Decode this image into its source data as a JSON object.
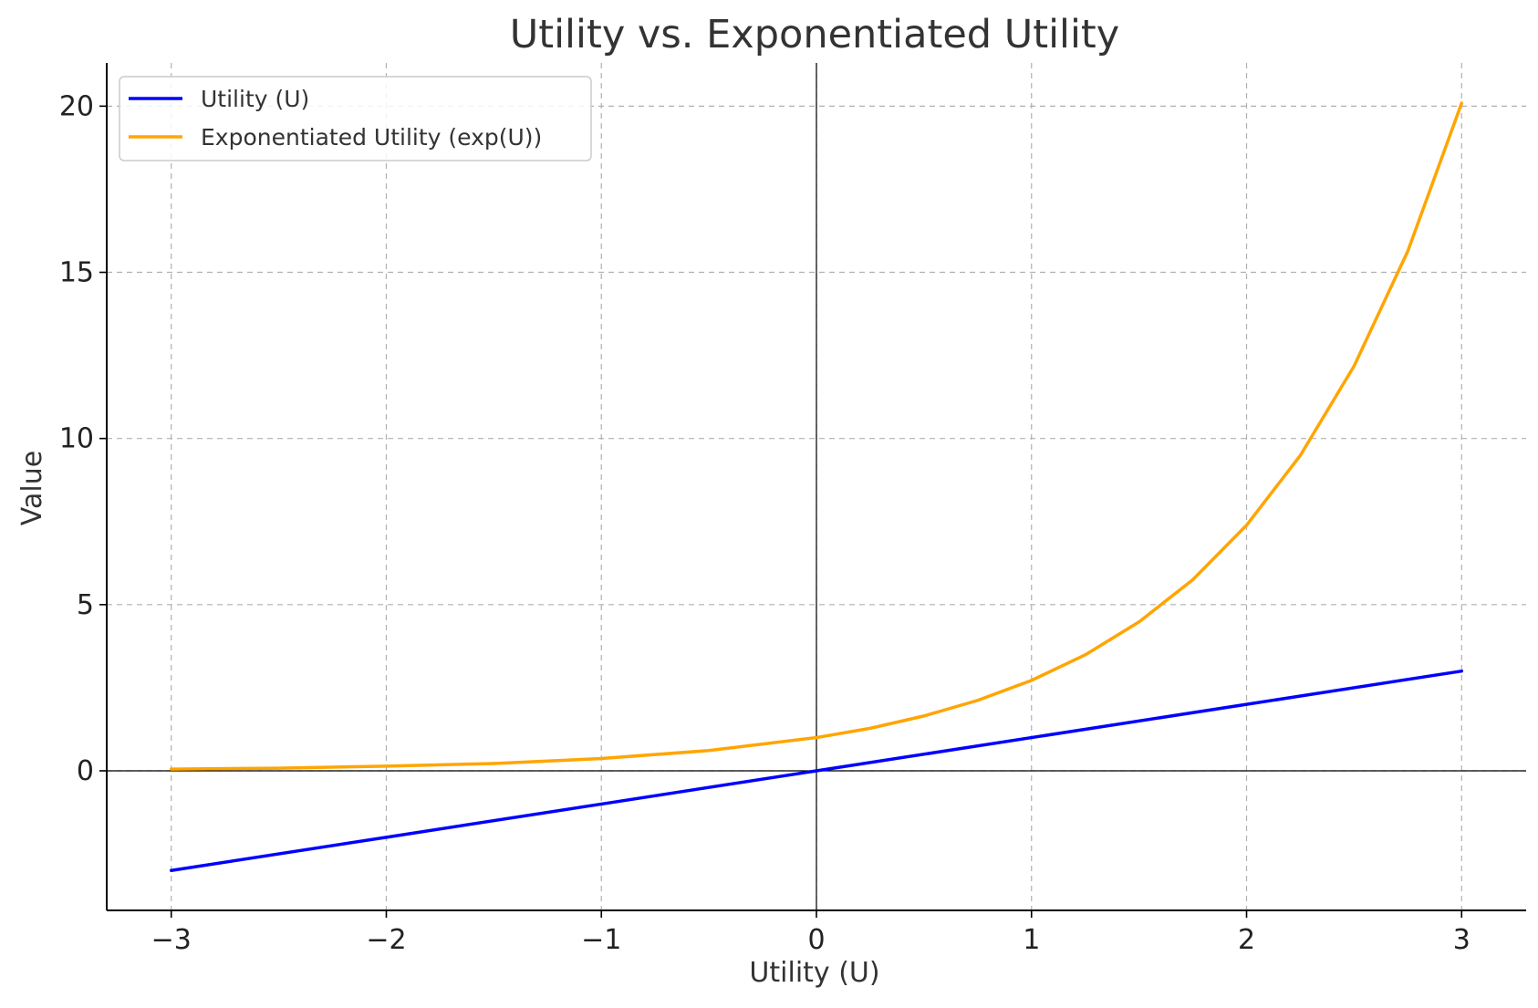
{
  "chart_data": {
    "type": "line",
    "title": "Utility vs. Exponentiated Utility",
    "xlabel": "Utility (U)",
    "ylabel": "Value",
    "xlim": [
      -3.3,
      3.3
    ],
    "ylim": [
      -4.2,
      21.3
    ],
    "x_ticks": [
      -3,
      -2,
      -1,
      0,
      1,
      2,
      3
    ],
    "x_tick_labels": [
      "−3",
      "−2",
      "−1",
      "0",
      "1",
      "2",
      "3"
    ],
    "y_ticks": [
      0,
      5,
      10,
      15,
      20
    ],
    "y_tick_labels": [
      "0",
      "5",
      "10",
      "15",
      "20"
    ],
    "grid": true,
    "legend_position": "top-left",
    "reference_lines": {
      "x": 0,
      "y": 0
    },
    "colors": {
      "text": "#333333",
      "tick_text": "#222222",
      "grid": "#b0b0b0",
      "axis": "#000000"
    },
    "series": [
      {
        "name": "Utility (U)",
        "color": "#0000ff",
        "x": [
          -3,
          -2,
          -1,
          0,
          1,
          2,
          3
        ],
        "y": [
          -3,
          -2,
          -1,
          0,
          1,
          2,
          3
        ]
      },
      {
        "name": "Exponentiated Utility (exp(U))",
        "color": "#ffa500",
        "x": [
          -3,
          -2.5,
          -2,
          -1.5,
          -1,
          -0.5,
          0,
          0.25,
          0.5,
          0.75,
          1,
          1.25,
          1.5,
          1.75,
          2,
          2.25,
          2.5,
          2.75,
          3
        ],
        "y": [
          0.05,
          0.08,
          0.14,
          0.22,
          0.37,
          0.61,
          1,
          1.28,
          1.65,
          2.12,
          2.72,
          3.49,
          4.48,
          5.75,
          7.39,
          9.49,
          12.18,
          15.64,
          20.09
        ]
      }
    ]
  }
}
